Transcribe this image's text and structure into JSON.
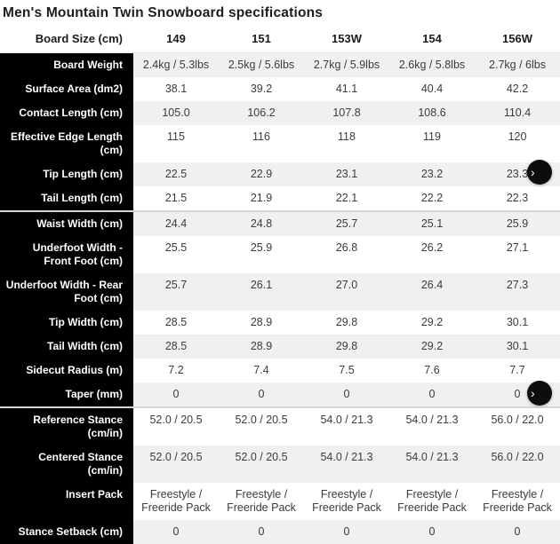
{
  "title": "Men's Mountain Twin Snowboard specifications",
  "colors": {
    "label_column_bg": "#000000",
    "stripe_row_bg": "#f0f0f0",
    "plain_row_bg": "#ffffff",
    "group_divider": "#d6d6d6",
    "fab_bg": "#0d0d0d"
  },
  "scroll_buttons": {
    "next_icon": "›"
  },
  "table": {
    "header": {
      "label": "Board Size (cm)",
      "sizes": [
        "149",
        "151",
        "153W",
        "154",
        "156W"
      ]
    },
    "rows": [
      {
        "label": "Board Weight",
        "values": [
          "2.4kg / 5.3lbs",
          "2.5kg / 5.6lbs",
          "2.7kg / 5.9lbs",
          "2.6kg / 5.8lbs",
          "2.7kg / 6lbs"
        ]
      },
      {
        "label": "Surface Area (dm2)",
        "values": [
          "38.1",
          "39.2",
          "41.1",
          "40.4",
          "42.2"
        ]
      },
      {
        "label": "Contact Length (cm)",
        "values": [
          "105.0",
          "106.2",
          "107.8",
          "108.6",
          "110.4"
        ]
      },
      {
        "label": "Effective Edge Length (cm)",
        "values": [
          "115",
          "116",
          "118",
          "119",
          "120"
        ]
      },
      {
        "label": "Tip Length (cm)",
        "values": [
          "22.5",
          "22.9",
          "23.1",
          "23.2",
          "23.3"
        ]
      },
      {
        "label": "Tail Length (cm)",
        "values": [
          "21.5",
          "21.9",
          "22.1",
          "22.2",
          "22.3"
        ]
      },
      {
        "label": "Waist Width (cm)",
        "values": [
          "24.4",
          "24.8",
          "25.7",
          "25.1",
          "25.9"
        ]
      },
      {
        "label": "Underfoot Width - Front Foot (cm)",
        "values": [
          "25.5",
          "25.9",
          "26.8",
          "26.2",
          "27.1"
        ]
      },
      {
        "label": "Underfoot Width - Rear Foot (cm)",
        "values": [
          "25.7",
          "26.1",
          "27.0",
          "26.4",
          "27.3"
        ]
      },
      {
        "label": "Tip Width (cm)",
        "values": [
          "28.5",
          "28.9",
          "29.8",
          "29.2",
          "30.1"
        ]
      },
      {
        "label": "Tail Width (cm)",
        "values": [
          "28.5",
          "28.9",
          "29.8",
          "29.2",
          "30.1"
        ]
      },
      {
        "label": "Sidecut Radius (m)",
        "values": [
          "7.2",
          "7.4",
          "7.5",
          "7.6",
          "7.7"
        ]
      },
      {
        "label": "Taper (mm)",
        "values": [
          "0",
          "0",
          "0",
          "0",
          "0"
        ]
      },
      {
        "label": "Reference Stance (cm/in)",
        "values": [
          "52.0 / 20.5",
          "52.0 / 20.5",
          "54.0 / 21.3",
          "54.0 / 21.3",
          "56.0 / 22.0"
        ]
      },
      {
        "label": "Centered Stance (cm/in)",
        "values": [
          "52.0 / 20.5",
          "52.0 / 20.5",
          "54.0 / 21.3",
          "54.0 / 21.3",
          "56.0 / 22.0"
        ]
      },
      {
        "label": "Insert Pack",
        "values": [
          "Freestyle / Freeride Pack",
          "Freestyle / Freeride Pack",
          "Freestyle / Freeride Pack",
          "Freestyle / Freeride Pack",
          "Freestyle / Freeride Pack"
        ]
      },
      {
        "label": "Stance Setback (cm)",
        "values": [
          "0",
          "0",
          "0",
          "0",
          "0"
        ]
      }
    ]
  }
}
